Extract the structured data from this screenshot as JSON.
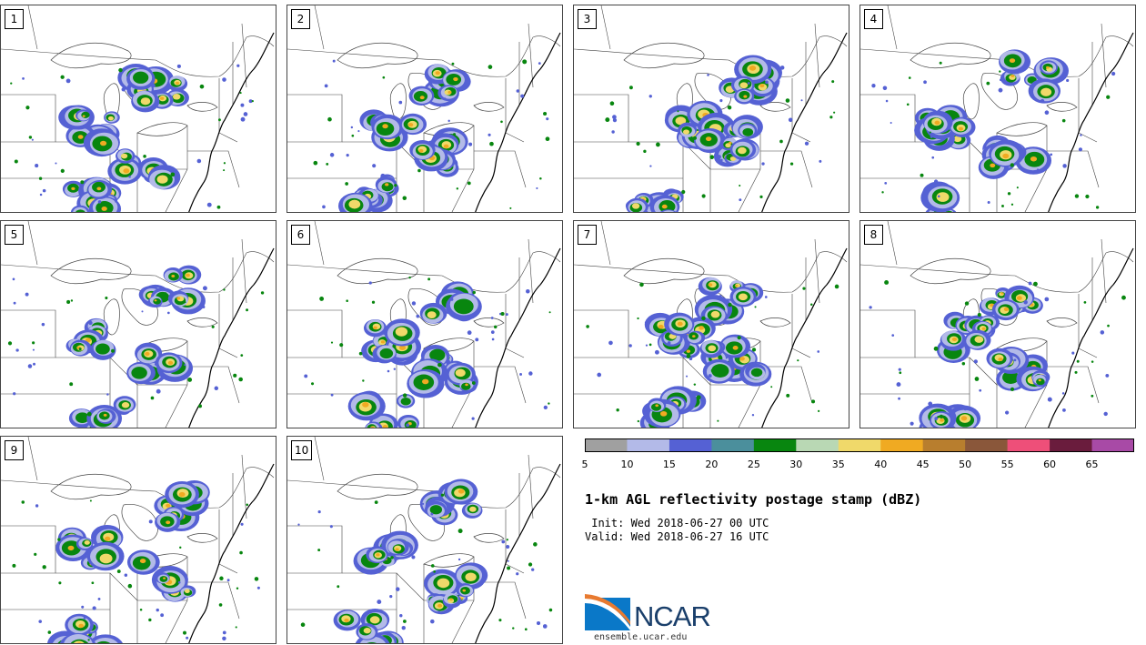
{
  "figure": {
    "title": "1-km AGL reflectivity postage stamp (dBZ)",
    "init": " Init: Wed 2018-06-27 00 UTC",
    "valid": "Valid: Wed 2018-06-27 16 UTC",
    "logo_text": "NCAR",
    "url": "ensemble.ucar.edu"
  },
  "members": [
    {
      "label": "1"
    },
    {
      "label": "2"
    },
    {
      "label": "3"
    },
    {
      "label": "4"
    },
    {
      "label": "5"
    },
    {
      "label": "6"
    },
    {
      "label": "7"
    },
    {
      "label": "8"
    },
    {
      "label": "9"
    },
    {
      "label": "10"
    }
  ],
  "colorbar": {
    "ticks": [
      "5",
      "10",
      "15",
      "20",
      "25",
      "30",
      "35",
      "40",
      "45",
      "50",
      "55",
      "60",
      "65"
    ],
    "colors": [
      "#a0a0a0",
      "#b3bae8",
      "#5561d4",
      "#4b8f9c",
      "#08860f",
      "#b9d8b4",
      "#f0d96a",
      "#f0aa22",
      "#b87e2e",
      "#8a573a",
      "#ee4f79",
      "#6a1c3d",
      "#a84aa6"
    ]
  },
  "colors": {
    "map_lines": "#444444",
    "coast": "#000000"
  }
}
